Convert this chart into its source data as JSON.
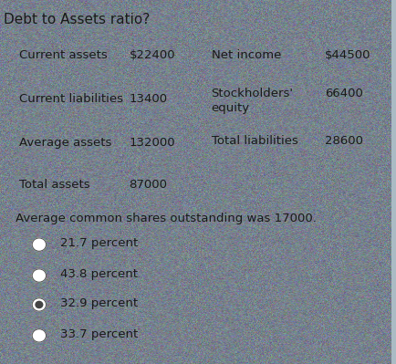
{
  "title": "Debt to Assets ratio?",
  "title_fontsize": 11,
  "title_color": "#222222",
  "background_color_top": "#b8c8d0",
  "background_color_bottom": "#a0b4bc",
  "left_column": [
    {
      "label": "Current assets",
      "value": "$22400"
    },
    {
      "label": "Current liabilities",
      "value": "13400"
    },
    {
      "label": "Average assets",
      "value": "132000"
    },
    {
      "label": "Total assets",
      "value": "87000"
    }
  ],
  "right_column": [
    {
      "label": "Net income",
      "value": "$44500"
    },
    {
      "label": "Stockholders'\nequity",
      "value": "66400"
    },
    {
      "label": "Total liabilities",
      "value": "28600"
    }
  ],
  "note": "Average common shares outstanding was 17000.",
  "note_fontsize": 9.5,
  "options": [
    "21.7 percent",
    "43.8 percent",
    "32.9 percent",
    "33.7 percent"
  ],
  "option_fontsize": 9.5,
  "label_fontsize": 9.5,
  "value_fontsize": 9.5,
  "text_color": "#1a1a1a",
  "radio_color": "#555555"
}
